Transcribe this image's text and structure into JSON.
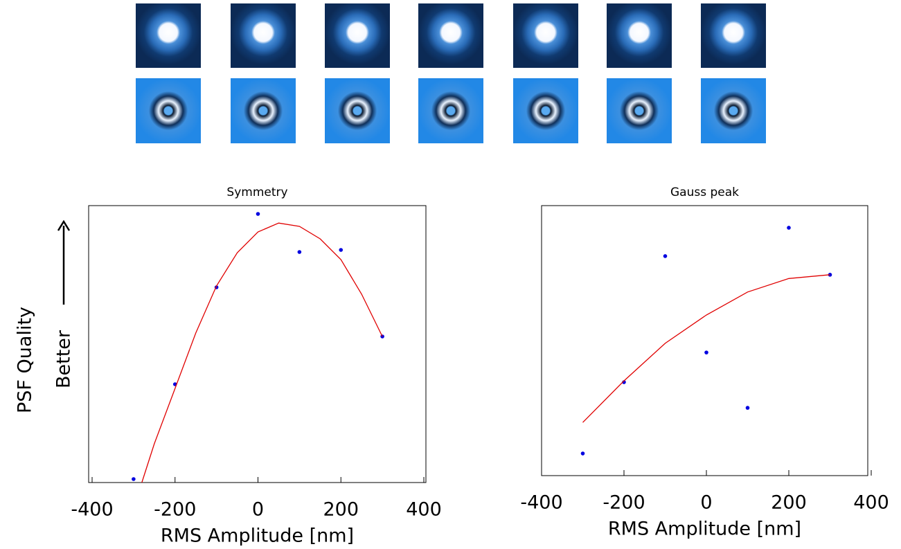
{
  "chart_data": [
    {
      "type": "scatter",
      "title": "Symmetry",
      "xlabel": "RMS Amplitude [nm]",
      "ylabel": "PSF Quality",
      "annotation": "Better",
      "xlim": [
        -400,
        400
      ],
      "xticks": [
        -400,
        -200,
        0,
        200,
        400
      ],
      "ylim": [
        0,
        1
      ],
      "series": [
        {
          "type": "scatter",
          "color": "#0000e0",
          "x": [
            -300,
            -200,
            -100,
            0,
            100,
            200,
            300
          ],
          "values": [
            0.0125,
            0.355,
            0.705,
            0.97,
            0.8325,
            0.84,
            0.5275
          ]
        },
        {
          "type": "line",
          "color": "#e00000",
          "x": [
            -280,
            -250,
            -200,
            -150,
            -100,
            -50,
            0,
            50,
            100,
            150,
            200,
            250,
            300
          ],
          "values": [
            0.0,
            0.14,
            0.34,
            0.54,
            0.71,
            0.83,
            0.905,
            0.937,
            0.925,
            0.88,
            0.805,
            0.68,
            0.5275
          ]
        }
      ]
    },
    {
      "type": "scatter",
      "title": "Gauss peak",
      "xlabel": "RMS Amplitude [nm]",
      "xlim": [
        -400,
        400
      ],
      "xticks": [
        -400,
        -200,
        0,
        200,
        400
      ],
      "ylim": [
        0,
        1
      ],
      "series": [
        {
          "type": "scatter",
          "color": "#0000e0",
          "x": [
            -300,
            -200,
            -100,
            0,
            100,
            200,
            300
          ],
          "values": [
            0.082,
            0.346,
            0.813,
            0.456,
            0.251,
            0.918,
            0.744
          ]
        },
        {
          "type": "line",
          "color": "#e00000",
          "x": [
            -300,
            -200,
            -100,
            0,
            100,
            200,
            300
          ],
          "values": [
            0.197,
            0.351,
            0.49,
            0.595,
            0.68,
            0.73,
            0.744
          ]
        }
      ]
    }
  ]
}
